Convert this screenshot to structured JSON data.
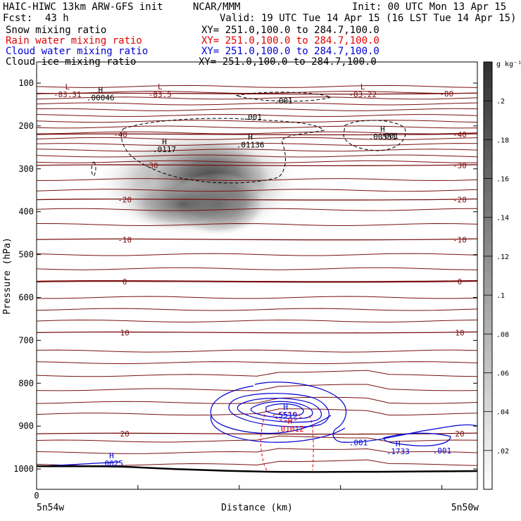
{
  "header": {
    "model_title": "HAIC-HIWC 13km ARW-GFS init",
    "org": "NCAR/MMM",
    "init": "Init: 00 UTC Mon 13 Apr 15",
    "fcst_label": "Fcst:",
    "fcst_hours": "43 h",
    "valid": "Valid: 19 UTC Tue 14 Apr 15 (16 LST Tue 14 Apr 15)"
  },
  "fields": [
    {
      "name": "Snow mixing ratio",
      "xy": "XY= 251.0,100.0 to 284.7,100.0",
      "color": "#000000"
    },
    {
      "name": "Rain water mixing ratio",
      "xy": "XY= 251.0,100.0 to 284.7,100.0",
      "color": "#e00000"
    },
    {
      "name": "Cloud water mixing ratio",
      "xy": "XY= 251.0,100.0 to 284.7,100.0",
      "color": "#0000d0"
    },
    {
      "name": "Cloud ice mixing ratio",
      "xy": "XY= 251.0,100.0 to 284.7,100.0",
      "color": "#000000"
    }
  ],
  "colors": {
    "temperature_contour": "#7a1010",
    "rain": "#e00000",
    "cloud_water": "#0000d0",
    "cloud_ice": "#000000",
    "snow_shading": "#404040"
  },
  "chart_data": {
    "type": "contour",
    "xlabel": "Distance (km)",
    "ylabel": "Pressure (hPa)",
    "x_endpoints": [
      "5n54w",
      "5n50w"
    ],
    "x_tick_labels": [
      "0"
    ],
    "y_axis": {
      "scale": "linear",
      "reversed": true,
      "range": [
        60,
        1055
      ],
      "ticks": [
        100,
        200,
        300,
        400,
        500,
        600,
        700,
        800,
        900,
        1000
      ]
    },
    "grid": false,
    "colorbar": {
      "unit": "g kg⁻¹",
      "tick_labels": [
        ".2",
        ".18",
        ".16",
        ".14",
        ".12",
        ".1",
        ".08",
        ".06",
        ".04",
        ".02"
      ],
      "position": "right"
    },
    "temperature_contours": {
      "units": "C",
      "labeled": [
        {
          "label": "-80",
          "p": 125
        },
        {
          "label": "-40",
          "p": 220
        },
        {
          "label": "-30",
          "p": 292
        },
        {
          "label": "-20",
          "p": 372
        },
        {
          "label": "-10",
          "p": 465
        },
        {
          "label": "0",
          "p": 563
        },
        {
          "label": "10",
          "p": 682
        },
        {
          "label": "20",
          "p": 918
        }
      ]
    },
    "extrema_labels": [
      {
        "type": "L",
        "value": "-83.31",
        "x": 0.07,
        "p": 115,
        "color": "#7a1010"
      },
      {
        "type": "L",
        "value": "-83.5",
        "x": 0.28,
        "p": 115,
        "color": "#7a1010"
      },
      {
        "type": "L",
        "value": "-83.22",
        "x": 0.74,
        "p": 115,
        "color": "#7a1010"
      },
      {
        "type": "H",
        "value": ".00046",
        "x": 0.145,
        "p": 122,
        "color": "#000000"
      },
      {
        "type": "H",
        "value": ".0117",
        "x": 0.29,
        "p": 243,
        "color": "#000000"
      },
      {
        "type": "H",
        "value": ".01136",
        "x": 0.485,
        "p": 232,
        "color": "#000000"
      },
      {
        "type": "H",
        "value": ".00551",
        "x": 0.785,
        "p": 213,
        "color": "#000000"
      },
      {
        "type": "H",
        "value": ".5519",
        "x": 0.565,
        "p": 862,
        "color": "#0000d0"
      },
      {
        "type": "H",
        "value": ".1733",
        "x": 0.82,
        "p": 947,
        "color": "#0000d0"
      },
      {
        "type": "H",
        "value": ".0025",
        "x": 0.17,
        "p": 975,
        "color": "#0000d0"
      },
      {
        "type": "H",
        "value": ".01012",
        "x": 0.575,
        "p": 895,
        "color": "#e00000"
      }
    ],
    "contour_labels": [
      {
        "value": ".001",
        "x": 0.56,
        "p": 141,
        "color": "#000000"
      },
      {
        "value": ".001",
        "x": 0.49,
        "p": 179,
        "color": "#000000"
      },
      {
        "value": ".001",
        "x": 0.8,
        "p": 223,
        "color": "#000000"
      },
      {
        "value": ".001",
        "x": 0.73,
        "p": 938,
        "color": "#0000d0"
      },
      {
        "value": ".001",
        "x": 0.92,
        "p": 957,
        "color": "#0000d0"
      }
    ]
  }
}
